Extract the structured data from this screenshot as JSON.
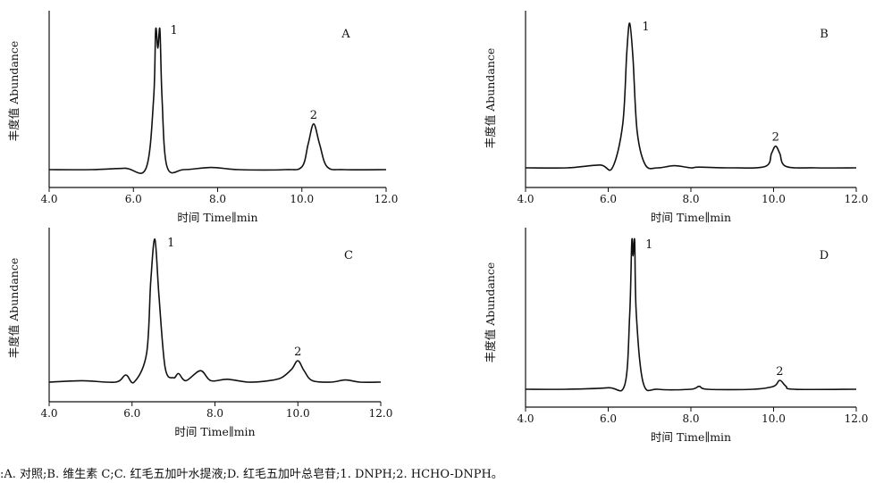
{
  "chart_data": [
    {
      "type": "line",
      "panel_label": "A",
      "xlabel": "时间 Time∥min",
      "ylabel": "丰度值 Abundance",
      "xlim": [
        4.0,
        12.0
      ],
      "x_ticks": [
        "4.0",
        "6.0",
        "8.0",
        "10.0",
        "12.0"
      ],
      "peaks": [
        {
          "label": "1",
          "rt": 6.58,
          "height": 1.0
        },
        {
          "label": "2",
          "rt": 10.28,
          "height": 0.32
        }
      ],
      "series": [
        {
          "x": [
            4.0,
            5.0,
            5.8,
            6.3,
            6.48,
            6.53,
            6.58,
            6.63,
            6.68,
            6.8,
            7.2,
            7.85,
            8.5,
            9.6,
            10.0,
            10.15,
            10.28,
            10.42,
            10.6,
            11.0,
            12.0
          ],
          "y": [
            0.0,
            0.0,
            0.01,
            0.01,
            0.5,
            0.98,
            0.85,
            0.98,
            0.5,
            0.02,
            0.0,
            0.015,
            0.0,
            0.0,
            0.02,
            0.18,
            0.32,
            0.18,
            0.02,
            0.0,
            0.0
          ]
        }
      ]
    },
    {
      "type": "line",
      "panel_label": "B",
      "xlabel": "时间 Time∥min",
      "ylabel": "丰度值 Abundance",
      "xlim": [
        4.0,
        12.0
      ],
      "x_ticks": [
        "4.0",
        "6.0",
        "8.0",
        "10.0",
        "12.0"
      ],
      "peaks": [
        {
          "label": "1",
          "rt": 6.52,
          "height": 1.0
        },
        {
          "label": "2",
          "rt": 10.05,
          "height": 0.15
        }
      ],
      "series": [
        {
          "x": [
            4.0,
            5.0,
            5.8,
            6.1,
            6.35,
            6.45,
            6.52,
            6.6,
            6.7,
            6.9,
            7.2,
            7.6,
            8.0,
            8.2,
            9.0,
            9.8,
            9.95,
            10.05,
            10.15,
            10.3,
            11.0,
            12.0
          ],
          "y": [
            0.0,
            0.0,
            0.02,
            0.0,
            0.3,
            0.8,
            1.0,
            0.75,
            0.25,
            0.02,
            0.0,
            0.015,
            0.0,
            0.005,
            0.0,
            0.01,
            0.1,
            0.15,
            0.1,
            0.01,
            0.0,
            0.0
          ]
        }
      ]
    },
    {
      "type": "line",
      "panel_label": "C",
      "xlabel": "时间 Time∥min",
      "ylabel": "丰度值 Abundance",
      "xlim": [
        4.0,
        12.0
      ],
      "x_ticks": [
        "4.0",
        "6.0",
        "8.0",
        "10.0",
        "12.0"
      ],
      "peaks": [
        {
          "label": "1",
          "rt": 6.55,
          "height": 1.0
        },
        {
          "label": "2",
          "rt": 10.0,
          "height": 0.15
        }
      ],
      "series": [
        {
          "x": [
            4.0,
            4.8,
            5.6,
            5.85,
            6.05,
            6.35,
            6.45,
            6.55,
            6.65,
            6.8,
            7.0,
            7.12,
            7.3,
            7.65,
            7.9,
            8.3,
            8.8,
            9.3,
            9.6,
            9.85,
            10.0,
            10.15,
            10.35,
            10.8,
            11.15,
            11.5,
            12.0
          ],
          "y": [
            0.0,
            0.01,
            0.0,
            0.05,
            0.0,
            0.2,
            0.7,
            1.0,
            0.6,
            0.1,
            0.03,
            0.06,
            0.01,
            0.08,
            0.01,
            0.02,
            0.0,
            0.01,
            0.03,
            0.09,
            0.15,
            0.08,
            0.01,
            0.0,
            0.015,
            0.0,
            0.0
          ]
        }
      ]
    },
    {
      "type": "line",
      "panel_label": "D",
      "xlabel": "时间 Time∥min",
      "ylabel": "丰度值 Abundance",
      "xlim": [
        4.0,
        12.0
      ],
      "x_ticks": [
        "4.0",
        "6.0",
        "8.0",
        "10.0",
        "12.0"
      ],
      "peaks": [
        {
          "label": "1",
          "rt": 6.6,
          "height": 1.0
        },
        {
          "label": "2",
          "rt": 10.15,
          "height": 0.06
        }
      ],
      "series": [
        {
          "x": [
            4.0,
            5.0,
            6.0,
            6.4,
            6.52,
            6.57,
            6.6,
            6.64,
            6.68,
            6.85,
            7.2,
            8.0,
            8.2,
            8.4,
            9.5,
            10.0,
            10.15,
            10.3,
            10.5,
            12.0
          ],
          "y": [
            0.0,
            0.0,
            0.01,
            0.03,
            0.5,
            1.0,
            0.9,
            1.0,
            0.5,
            0.04,
            0.0,
            0.0,
            0.02,
            0.0,
            0.0,
            0.02,
            0.06,
            0.02,
            0.0,
            0.0
          ]
        }
      ]
    }
  ],
  "caption": ":A. 对照;B. 维生素 C;C. 红毛五加叶水提液;D. 红毛五加叶总皂苷;1. DNPH;2. HCHO-DNPH。"
}
